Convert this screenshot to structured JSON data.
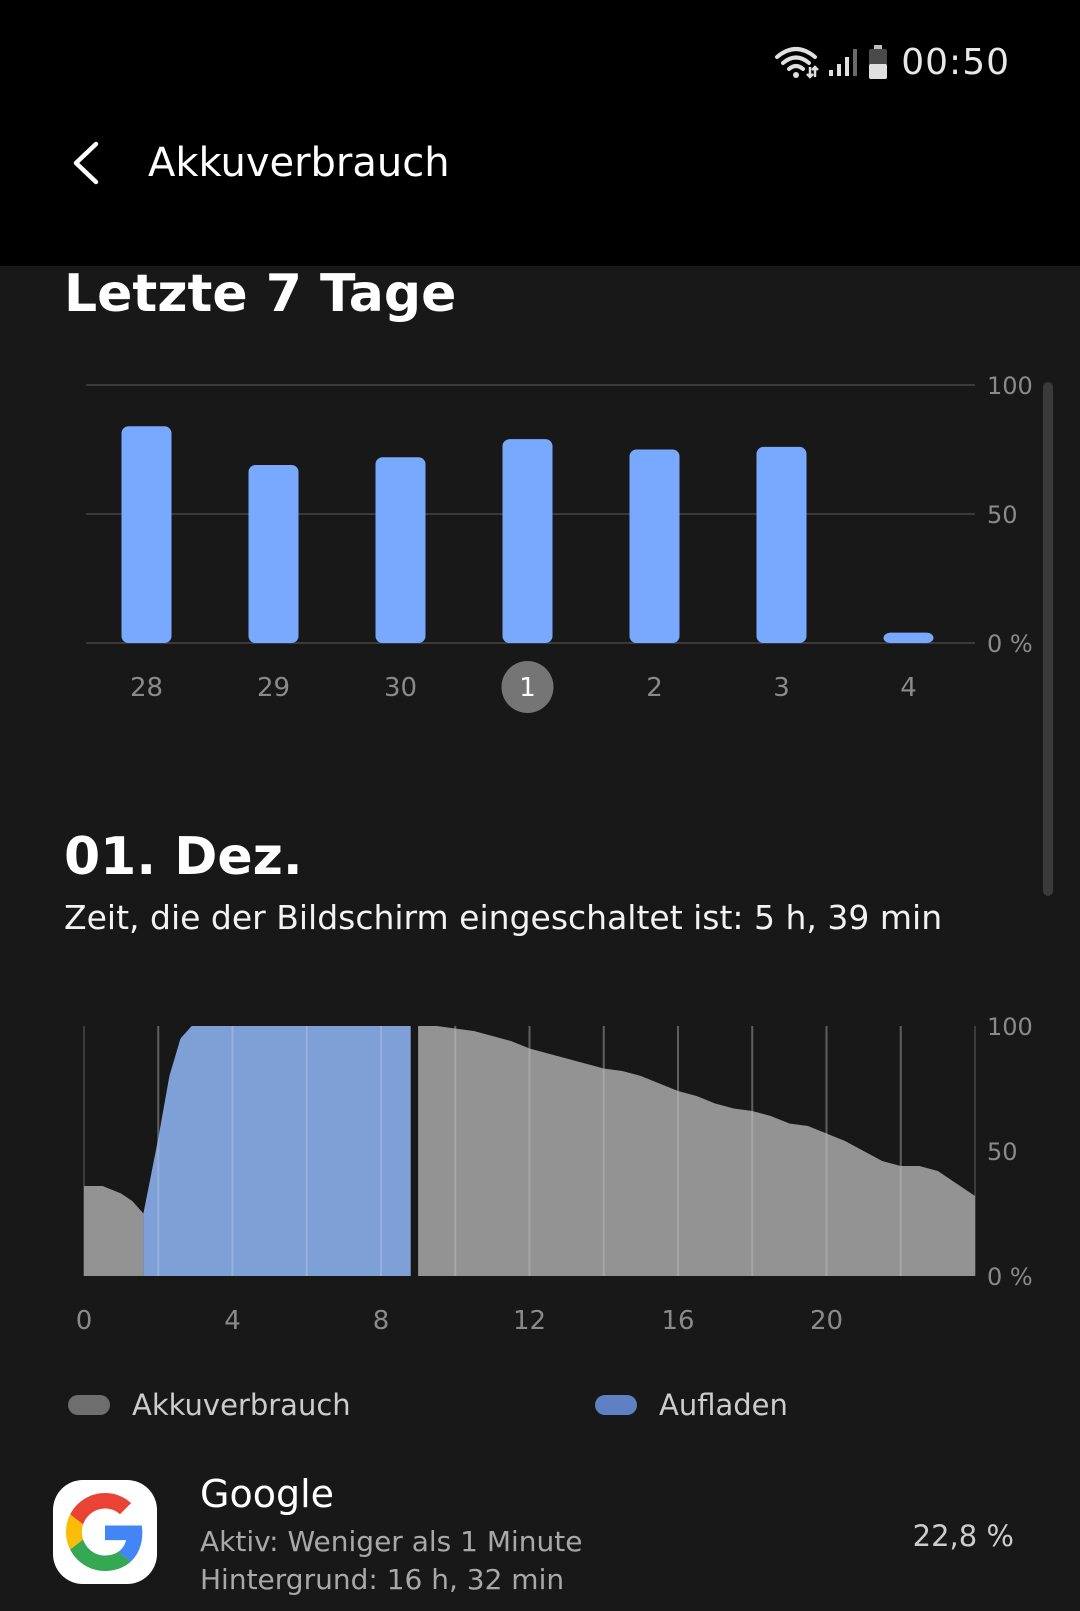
{
  "status_bar": {
    "time": "00:50",
    "icons": [
      "wifi-icon",
      "signal-icon",
      "battery-icon"
    ]
  },
  "app_bar": {
    "back_icon": "chevron-left-icon",
    "title": "Akkuverbrauch"
  },
  "weekly": {
    "title": "Letzte 7 Tage",
    "selected_index": 3
  },
  "day": {
    "title": "01. Dez.",
    "screen_time": "Zeit, die der Bildschirm eingeschaltet ist: 5 h, 39 min"
  },
  "legend": {
    "usage": "Akkuverbrauch",
    "charging": "Aufladen"
  },
  "app_list": [
    {
      "name": "Google",
      "icon": "google-icon",
      "active": "Aktiv: Weniger als 1 Minute",
      "background": "Hintergrund: 16 h, 32 min",
      "percent": "22,8 %"
    }
  ],
  "colors": {
    "bar": "#78a9ff",
    "usage_area": "#939393",
    "charging_area": "#7fa0d6",
    "legend_usage": "#6e6e6e",
    "legend_charging": "#5f80c2",
    "selected_day_bg": "#757575",
    "background": "#181818",
    "header": "#000000"
  },
  "chart_data": [
    {
      "type": "bar",
      "title": "",
      "categories": [
        "28",
        "29",
        "30",
        "1",
        "2",
        "3",
        "4"
      ],
      "values": [
        84,
        69,
        72,
        79,
        75,
        76,
        4
      ],
      "ylim": [
        0,
        100
      ],
      "yticks": [
        "100",
        "50",
        "0 %"
      ],
      "grid": true
    },
    {
      "type": "area",
      "title": "",
      "x": [
        0,
        0.5,
        1,
        1.3,
        1.6,
        2,
        2.3,
        2.6,
        2.9,
        3,
        6,
        8.8,
        9,
        9.5,
        10,
        10.5,
        11,
        11.5,
        12,
        12.5,
        13,
        13.5,
        14,
        14.5,
        15,
        15.5,
        16,
        16.5,
        17,
        17.5,
        18,
        18.5,
        19,
        19.5,
        20,
        20.5,
        21,
        21.5,
        22,
        22.5,
        23,
        23.5,
        24
      ],
      "series": [
        {
          "name": "Akkuverbrauch",
          "values": [
            36,
            36,
            33,
            30,
            25,
            null,
            null,
            null,
            null,
            null,
            null,
            null,
            100,
            100,
            99,
            98,
            96,
            94,
            91,
            89,
            87,
            85,
            83,
            82,
            80,
            77,
            74,
            72,
            69,
            67,
            66,
            64,
            61,
            60,
            57,
            54,
            50,
            46,
            44,
            44,
            42,
            37,
            32
          ]
        },
        {
          "name": "Aufladen",
          "values": [
            null,
            null,
            null,
            null,
            25,
            55,
            80,
            95,
            100,
            100,
            100,
            100,
            null,
            null,
            null,
            null,
            null,
            null,
            null,
            null,
            null,
            null,
            null,
            null,
            null,
            null,
            null,
            null,
            null,
            null,
            null,
            null,
            null,
            null,
            null,
            null,
            null,
            null,
            null,
            null,
            null,
            null,
            null
          ]
        }
      ],
      "xticks": [
        "0",
        "4",
        "8",
        "12",
        "16",
        "20"
      ],
      "xlim": [
        0,
        24
      ],
      "ylim": [
        0,
        100
      ],
      "yticks": [
        "100",
        "50",
        "0 %"
      ],
      "grid": true
    }
  ]
}
